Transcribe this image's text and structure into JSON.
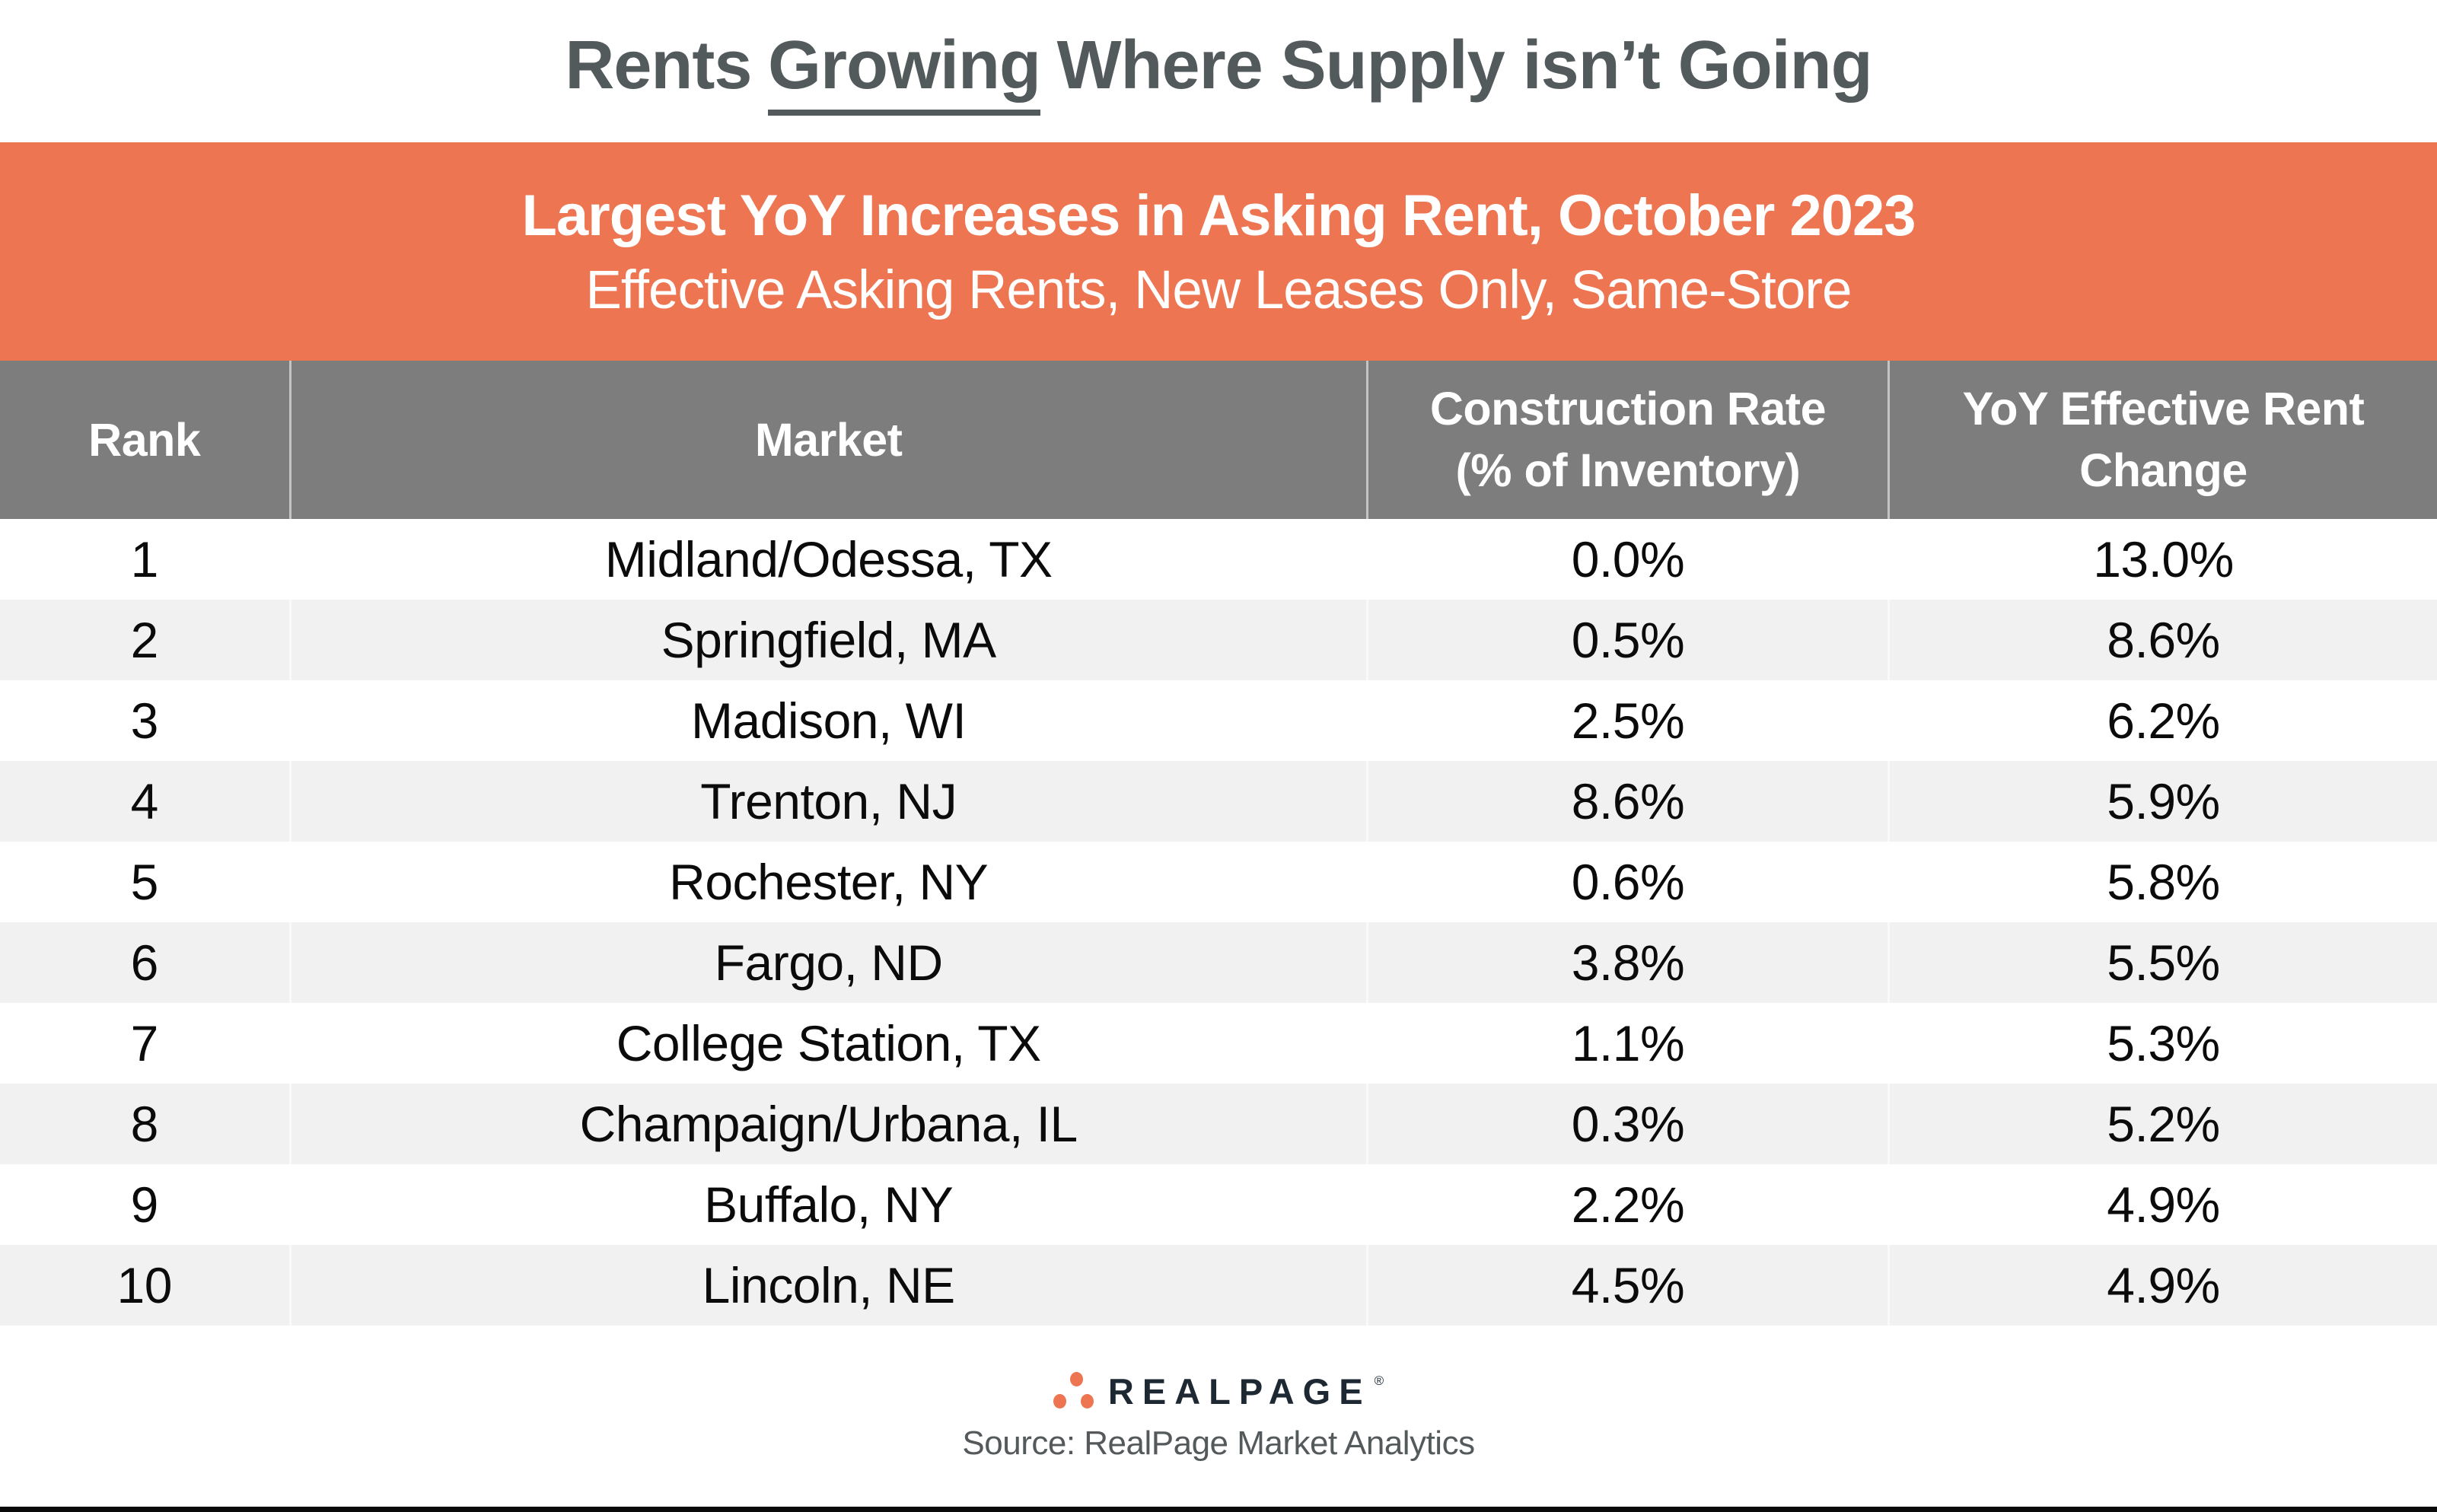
{
  "title": {
    "part1": "Rents",
    "part2_underlined": "Growing",
    "part3": "Where Supply isn’t Going"
  },
  "banner": {
    "line1": "Largest YoY Increases in Asking Rent, October 2023",
    "line2": "Effective Asking Rents, New Leases Only, Same-Store"
  },
  "table": {
    "headers": [
      "Rank",
      "Market",
      "Construction Rate\n(% of Inventory)",
      "YoY Effective Rent\nChange"
    ],
    "rows": [
      {
        "rank": "1",
        "market": "Midland/Odessa, TX",
        "construction_rate": "0.0%",
        "yoy_rent_change": "13.0%"
      },
      {
        "rank": "2",
        "market": "Springfield, MA",
        "construction_rate": "0.5%",
        "yoy_rent_change": "8.6%"
      },
      {
        "rank": "3",
        "market": "Madison, WI",
        "construction_rate": "2.5%",
        "yoy_rent_change": "6.2%"
      },
      {
        "rank": "4",
        "market": "Trenton, NJ",
        "construction_rate": "8.6%",
        "yoy_rent_change": "5.9%"
      },
      {
        "rank": "5",
        "market": "Rochester, NY",
        "construction_rate": "0.6%",
        "yoy_rent_change": "5.8%"
      },
      {
        "rank": "6",
        "market": "Fargo, ND",
        "construction_rate": "3.8%",
        "yoy_rent_change": "5.5%"
      },
      {
        "rank": "7",
        "market": "College Station, TX",
        "construction_rate": "1.1%",
        "yoy_rent_change": "5.3%"
      },
      {
        "rank": "8",
        "market": "Champaign/Urbana, IL",
        "construction_rate": "0.3%",
        "yoy_rent_change": "5.2%"
      },
      {
        "rank": "9",
        "market": "Buffalo, NY",
        "construction_rate": "2.2%",
        "yoy_rent_change": "4.9%"
      },
      {
        "rank": "10",
        "market": "Lincoln, NE",
        "construction_rate": "4.5%",
        "yoy_rent_change": "4.9%"
      }
    ]
  },
  "footer": {
    "logo_text": "REALPAGE",
    "reg_mark": "®",
    "source": "Source: RealPage Market Analytics"
  },
  "colors": {
    "banner_orange": "#ED7551",
    "header_gray": "#7D7D7D",
    "stripe_gray": "#F1F1F1",
    "title_gray": "#525A5C",
    "logo_navy": "#1D2833",
    "logo_dot_orange": "#ED7551",
    "data_text": "#0b0b0b",
    "bottom_bar": "#0a0a0a"
  },
  "chart_data": {
    "type": "table",
    "title": "Rents Growing Where Supply isn’t Going",
    "subtitle": "Largest YoY Increases in Asking Rent, October 2023 — Effective Asking Rents, New Leases Only, Same-Store",
    "columns": [
      "Rank",
      "Market",
      "Construction Rate (% of Inventory)",
      "YoY Effective Rent Change"
    ],
    "rows": [
      [
        1,
        "Midland/Odessa, TX",
        "0.0%",
        "13.0%"
      ],
      [
        2,
        "Springfield, MA",
        "0.5%",
        "8.6%"
      ],
      [
        3,
        "Madison, WI",
        "2.5%",
        "6.2%"
      ],
      [
        4,
        "Trenton, NJ",
        "8.6%",
        "5.9%"
      ],
      [
        5,
        "Rochester, NY",
        "0.6%",
        "5.8%"
      ],
      [
        6,
        "Fargo, ND",
        "3.8%",
        "5.5%"
      ],
      [
        7,
        "College Station, TX",
        "1.1%",
        "5.3%"
      ],
      [
        8,
        "Champaign/Urbana, IL",
        "0.3%",
        "5.2%"
      ],
      [
        9,
        "Buffalo, NY",
        "2.2%",
        "4.9%"
      ],
      [
        10,
        "Lincoln, NE",
        "4.5%",
        "4.9%"
      ]
    ],
    "source": "RealPage Market Analytics"
  }
}
